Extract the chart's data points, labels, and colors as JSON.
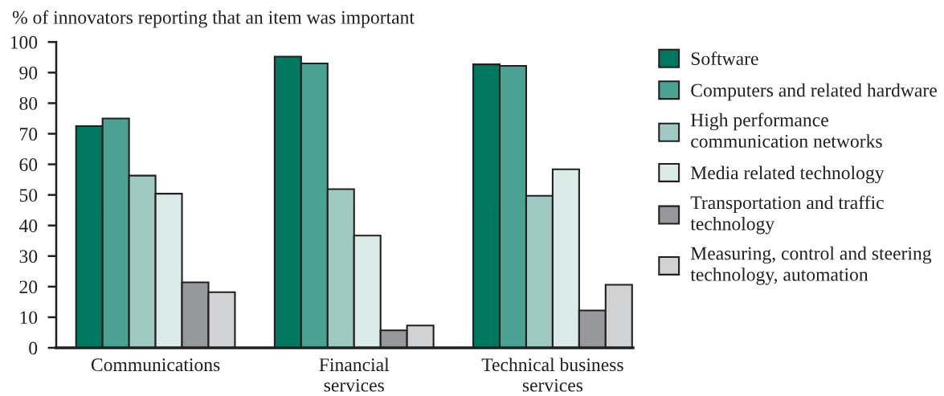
{
  "chart_data": {
    "type": "bar",
    "ylabel": "% of innovators reporting that an item was important",
    "categories": [
      "Communications",
      "Financial\nservices",
      "Technical business\nservices"
    ],
    "series": [
      {
        "name": "Software",
        "color": "#00775f",
        "values": [
          72.5,
          95.2,
          92.7
        ]
      },
      {
        "name": "Computers and related hardware",
        "color": "#4aa293",
        "values": [
          75.0,
          93.0,
          92.2
        ]
      },
      {
        "name": "High performance\ncommunication networks",
        "color": "#9fc9c3",
        "values": [
          56.3,
          51.9,
          49.7
        ]
      },
      {
        "name": "Media related technology",
        "color": "#dbebe7",
        "values": [
          50.4,
          36.7,
          58.4
        ]
      },
      {
        "name": "Transportation and traffic\ntechnology",
        "color": "#96989b",
        "values": [
          21.4,
          5.7,
          12.2
        ]
      },
      {
        "name": "Measuring, control and steering\ntechnology, automation",
        "color": "#d0d2d4",
        "values": [
          18.2,
          7.3,
          20.6
        ]
      }
    ],
    "ylim": [
      0,
      100
    ],
    "yticks": [
      0,
      10,
      20,
      30,
      40,
      50,
      60,
      70,
      80,
      90,
      100
    ],
    "legend": "right"
  }
}
